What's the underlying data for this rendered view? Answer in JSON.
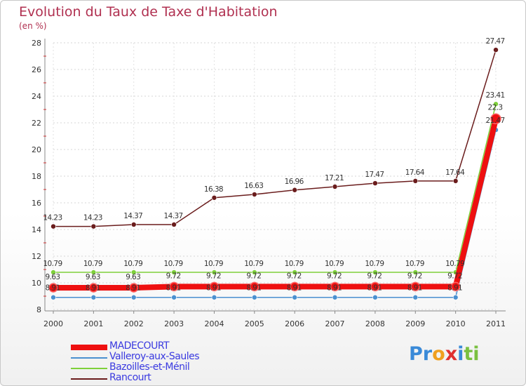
{
  "chart_data": {
    "type": "line",
    "title": "Evolution du Taux de Taxe d'Habitation",
    "unit_label": "(en %)",
    "x": [
      "2000",
      "2001",
      "2002",
      "2003",
      "2004",
      "2005",
      "2006",
      "2007",
      "2008",
      "2009",
      "2010",
      "2011"
    ],
    "ylim": [
      8,
      28
    ],
    "yticks": [
      "8",
      "10",
      "12",
      "14",
      "16",
      "18",
      "20",
      "22",
      "24",
      "26",
      "28"
    ],
    "legend_position": "bottom-left",
    "series": [
      {
        "name": "Rancourt",
        "color": "#6a1c1c",
        "values": [
          14.23,
          14.23,
          14.37,
          14.37,
          16.38,
          16.63,
          16.96,
          17.21,
          17.47,
          17.64,
          17.64,
          27.47
        ],
        "labels": [
          "14.23",
          "14.23",
          "14.37",
          "14.37",
          "16.38",
          "16.63",
          "16.96",
          "17.21",
          "17.47",
          "17.64",
          "17.64",
          "27.47"
        ]
      },
      {
        "name": "Bazoilles-et-Ménil",
        "color": "#7ed03a",
        "values": [
          10.79,
          10.79,
          10.79,
          10.79,
          10.79,
          10.79,
          10.79,
          10.79,
          10.79,
          10.79,
          10.79,
          23.41
        ],
        "labels": [
          "10.79",
          "10.79",
          "10.79",
          "10.79",
          "10.79",
          "10.79",
          "10.79",
          "10.79",
          "10.79",
          "10.79",
          "10.79",
          "23.41"
        ]
      },
      {
        "name": "Valleroy-aux-Saules",
        "color": "#4a90d0",
        "values": [
          8.91,
          8.91,
          8.91,
          8.91,
          8.91,
          8.91,
          8.91,
          8.91,
          8.91,
          8.91,
          8.91,
          21.47
        ],
        "labels": [
          "8.91",
          "8.91",
          "8.91",
          "8.91",
          "8.91",
          "8.91",
          "8.91",
          "8.91",
          "8.91",
          "8.91",
          "8.91",
          "21.47"
        ]
      },
      {
        "name": "MADECOURT",
        "color": "#ee1010",
        "values": [
          9.63,
          9.63,
          9.63,
          9.72,
          9.72,
          9.72,
          9.72,
          9.72,
          9.72,
          9.72,
          9.72,
          22.3
        ],
        "labels": [
          "9.63",
          "9.63",
          "9.63",
          "9.72",
          "9.72",
          "9.72",
          "9.72",
          "9.72",
          "9.72",
          "9.72",
          "9.72",
          "22.3"
        ]
      }
    ]
  },
  "legend": [
    {
      "label": "MADECOURT",
      "color": "#ee1010",
      "thick": true
    },
    {
      "label": "Valleroy-aux-Saules",
      "color": "#4a90d0",
      "thick": false
    },
    {
      "label": "Bazoilles-et-Ménil",
      "color": "#7ed03a",
      "thick": false
    },
    {
      "label": "Rancourt",
      "color": "#6a1c1c",
      "thick": false
    }
  ],
  "brand": {
    "letters": [
      "P",
      "r",
      "o",
      "x",
      "i",
      "t",
      "i"
    ],
    "colors": [
      "#3a8ad8",
      "#3a8ad8",
      "#f0a020",
      "#e03030",
      "#3a8ad8",
      "#7ac040",
      "#7ac040"
    ]
  }
}
